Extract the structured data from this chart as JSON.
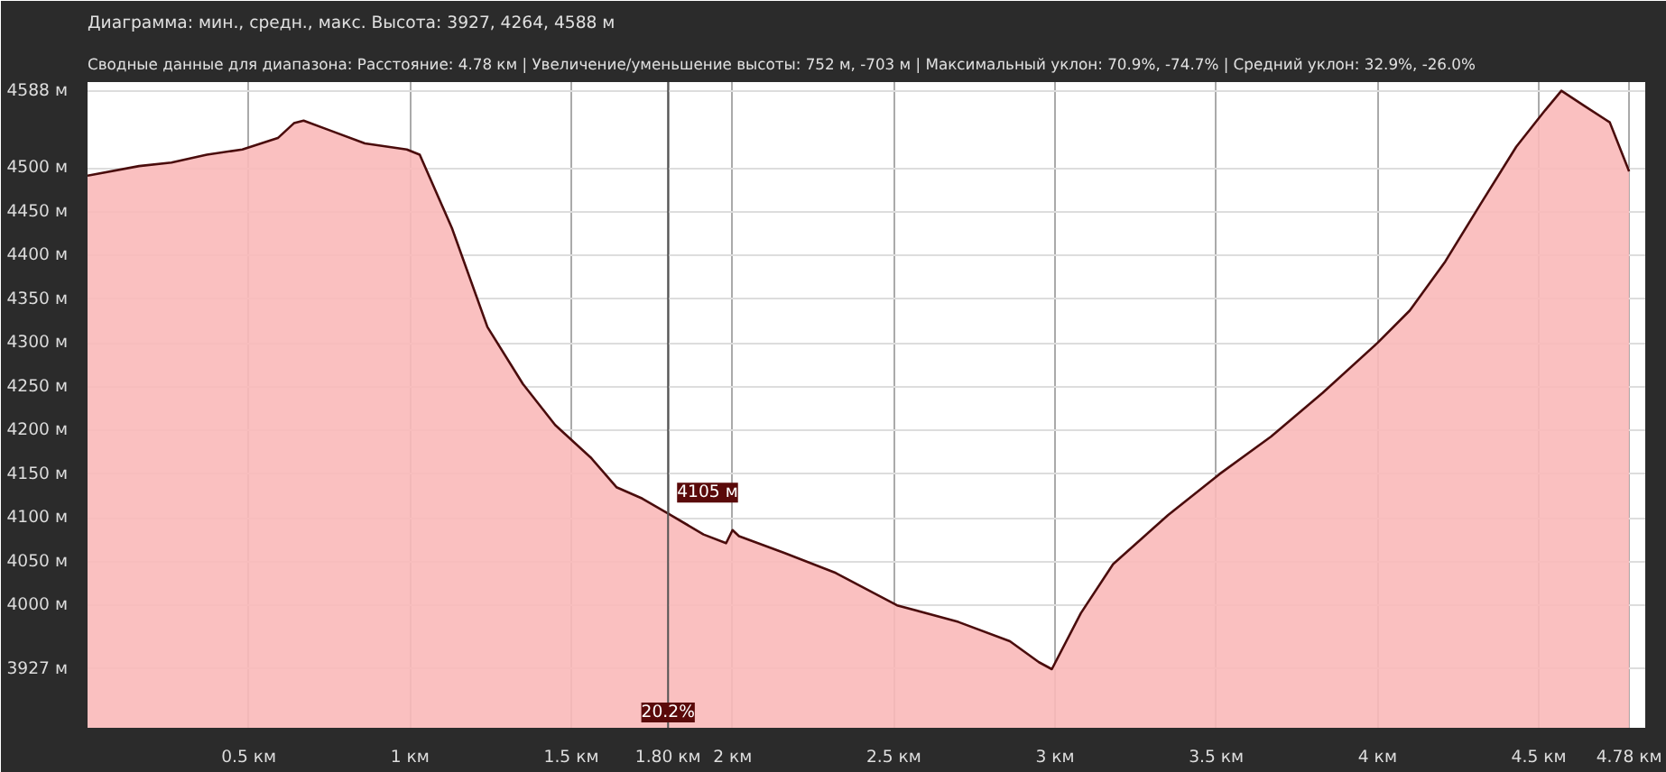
{
  "chart_data": {
    "type": "area",
    "title": "Диаграмма: мин., средн., макс. Высота: 3927, 4264, 4588 м",
    "subtitle": "Сводные данные для диапазона: Расстояние: 4.78 км | Увеличение/уменьшение высоты: 752 м, -703 м | Максимальный уклон: 70.9%, -74.7% | Средний уклон: 32.9%, -26.0%",
    "x": [
      0,
      0.16,
      0.26,
      0.37,
      0.48,
      0.59,
      0.64,
      0.67,
      0.75,
      0.86,
      0.99,
      1.03,
      1.13,
      1.24,
      1.35,
      1.45,
      1.56,
      1.64,
      1.72,
      1.8,
      1.91,
      1.98,
      2.0,
      2.02,
      2.16,
      2.32,
      2.51,
      2.7,
      2.86,
      2.95,
      2.99,
      3.08,
      3.18,
      3.35,
      3.51,
      3.67,
      3.83,
      4.0,
      4.1,
      4.21,
      4.32,
      4.43,
      4.52,
      4.57,
      4.64,
      4.72,
      4.78
    ],
    "series": [
      {
        "color": "#4a0c0c",
        "values": [
          4491,
          4502,
          4506,
          4515,
          4521,
          4534,
          4551,
          4554,
          4543,
          4528,
          4521,
          4515,
          4431,
          4318,
          4253,
          4206,
          4169,
          4135,
          4122,
          4105,
          4081,
          4071,
          4086,
          4079,
          4060,
          4037,
          4000,
          3981,
          3959,
          3935,
          3927,
          3991,
          4047,
          4103,
          4150,
          4193,
          4243,
          4300,
          4337,
          4393,
          4459,
          4524,
          4566,
          4588,
          4571,
          4552,
          4496
        ]
      }
    ],
    "xlim": [
      0,
      4.83
    ],
    "ylim": [
      3860,
      4598
    ],
    "xticks": [
      {
        "value": 0.5,
        "label": "0.5 км"
      },
      {
        "value": 1,
        "label": "1 км"
      },
      {
        "value": 1.5,
        "label": "1.5 км"
      },
      {
        "value": 2,
        "label": "2 км"
      },
      {
        "value": 2.5,
        "label": "2.5 км"
      },
      {
        "value": 3,
        "label": "3 км"
      },
      {
        "value": 3.5,
        "label": "3.5 км"
      },
      {
        "value": 4,
        "label": "4 км"
      },
      {
        "value": 4.5,
        "label": "4.5 км"
      },
      {
        "value": 4.78,
        "label": "4.78 км"
      }
    ],
    "yticks": [
      {
        "value": 3927,
        "label": "3927 м"
      },
      {
        "value": 4000,
        "label": "4000 м"
      },
      {
        "value": 4050,
        "label": "4050 м"
      },
      {
        "value": 4100,
        "label": "4100 м"
      },
      {
        "value": 4150,
        "label": "4150 м"
      },
      {
        "value": 4200,
        "label": "4200 м"
      },
      {
        "value": 4250,
        "label": "4250 м"
      },
      {
        "value": 4300,
        "label": "4300 м"
      },
      {
        "value": 4350,
        "label": "4350 м"
      },
      {
        "value": 4400,
        "label": "4400 м"
      },
      {
        "value": 4450,
        "label": "4450 м"
      },
      {
        "value": 4500,
        "label": "4500 м"
      },
      {
        "value": 4588,
        "label": "4588 м"
      }
    ],
    "ref_lines": [
      {
        "axis": "x",
        "value": 1.8,
        "label": "1.80 км",
        "color": "#555555"
      }
    ],
    "annotations": [
      {
        "text": "4105 м",
        "x": 1.8,
        "y": 4105
      },
      "20.2%"
    ],
    "grid": true
  }
}
